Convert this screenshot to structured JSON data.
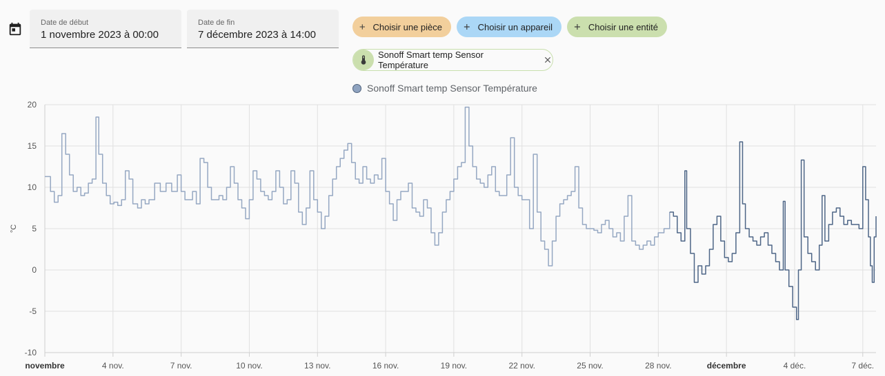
{
  "date_range": {
    "start": {
      "label": "Date de début",
      "value": "1 novembre 2023 à 00:00"
    },
    "end": {
      "label": "Date de fin",
      "value": "7 décembre 2023 à 14:00"
    }
  },
  "target_picker": {
    "area": {
      "label": "Choisir une pièce",
      "color": "#f2cf9c"
    },
    "device": {
      "label": "Choisir un appareil",
      "color": "#abd7f6"
    },
    "entity": {
      "label": "Choisir une entité",
      "color": "#cbdfae"
    }
  },
  "selected_entity": {
    "label": "Sonoff Smart temp Sensor Température",
    "icon": "thermometer-icon"
  },
  "chart_data": {
    "type": "line",
    "ylabel": "°C",
    "ylim": [
      -10,
      20
    ],
    "yticks": [
      "20",
      "15",
      "10",
      "5",
      "0",
      "-5",
      "-10"
    ],
    "grid": true,
    "legend": "top",
    "xlim": [
      "2023-11-01T00:00",
      "2023-12-07T14:00"
    ],
    "xticks": [
      {
        "label": "novembre",
        "date": "2023-11-01",
        "bold": true
      },
      {
        "label": "4 nov.",
        "date": "2023-11-04"
      },
      {
        "label": "7 nov.",
        "date": "2023-11-07"
      },
      {
        "label": "10 nov.",
        "date": "2023-11-10"
      },
      {
        "label": "13 nov.",
        "date": "2023-11-13"
      },
      {
        "label": "16 nov.",
        "date": "2023-11-16"
      },
      {
        "label": "19 nov.",
        "date": "2023-11-19"
      },
      {
        "label": "22 nov.",
        "date": "2023-11-22"
      },
      {
        "label": "25 nov.",
        "date": "2023-11-25"
      },
      {
        "label": "28 nov.",
        "date": "2023-11-28"
      },
      {
        "label": "décembre",
        "date": "2023-12-01",
        "bold": true
      },
      {
        "label": "4 déc.",
        "date": "2023-12-04"
      },
      {
        "label": "7 déc.",
        "date": "2023-12-07"
      }
    ],
    "series": [
      {
        "name": "Sonoff Smart temp Sensor Température",
        "color_history": "#95a7c2",
        "color_recent": "#4d6586",
        "recent_from": "2023-11-28T12:00",
        "points": [
          [
            "2023-11-01T00:00",
            11.3
          ],
          [
            "2023-11-01T06:00",
            9.5
          ],
          [
            "2023-11-01T10:00",
            8.2
          ],
          [
            "2023-11-01T14:00",
            9.0
          ],
          [
            "2023-11-01T18:00",
            16.5
          ],
          [
            "2023-11-01T22:00",
            14.0
          ],
          [
            "2023-11-02T02:00",
            11.5
          ],
          [
            "2023-11-02T06:00",
            9.5
          ],
          [
            "2023-11-02T10:00",
            10.0
          ],
          [
            "2023-11-02T14:00",
            9.0
          ],
          [
            "2023-11-02T18:00",
            9.3
          ],
          [
            "2023-11-02T22:00",
            10.5
          ],
          [
            "2023-11-03T02:00",
            11.0
          ],
          [
            "2023-11-03T06:00",
            18.5
          ],
          [
            "2023-11-03T09:00",
            14.0
          ],
          [
            "2023-11-03T13:00",
            10.5
          ],
          [
            "2023-11-03T17:00",
            9.0
          ],
          [
            "2023-11-03T21:00",
            8.0
          ],
          [
            "2023-11-04T01:00",
            8.2
          ],
          [
            "2023-11-04T05:00",
            7.8
          ],
          [
            "2023-11-04T09:00",
            8.5
          ],
          [
            "2023-11-04T13:00",
            12.0
          ],
          [
            "2023-11-04T17:00",
            11.0
          ],
          [
            "2023-11-04T21:00",
            8.0
          ],
          [
            "2023-11-05T02:00",
            7.5
          ],
          [
            "2023-11-05T06:00",
            8.5
          ],
          [
            "2023-11-05T10:00",
            8.0
          ],
          [
            "2023-11-05T14:00",
            8.5
          ],
          [
            "2023-11-05T20:00",
            10.5
          ],
          [
            "2023-11-06T02:00",
            9.5
          ],
          [
            "2023-11-06T08:00",
            10.5
          ],
          [
            "2023-11-06T14:00",
            9.5
          ],
          [
            "2023-11-06T20:00",
            11.5
          ],
          [
            "2023-11-07T00:00",
            9.5
          ],
          [
            "2023-11-07T04:00",
            8.5
          ],
          [
            "2023-11-07T08:00",
            8.5
          ],
          [
            "2023-11-07T12:00",
            9.5
          ],
          [
            "2023-11-07T16:00",
            8.0
          ],
          [
            "2023-11-07T20:00",
            13.5
          ],
          [
            "2023-11-08T00:00",
            13.0
          ],
          [
            "2023-11-08T04:00",
            10.0
          ],
          [
            "2023-11-08T08:00",
            8.5
          ],
          [
            "2023-11-08T12:00",
            8.5
          ],
          [
            "2023-11-08T16:00",
            9.0
          ],
          [
            "2023-11-08T20:00",
            8.5
          ],
          [
            "2023-11-09T00:00",
            10.0
          ],
          [
            "2023-11-09T04:00",
            12.5
          ],
          [
            "2023-11-09T08:00",
            10.5
          ],
          [
            "2023-11-09T12:00",
            8.5
          ],
          [
            "2023-11-09T16:00",
            7.5
          ],
          [
            "2023-11-09T20:00",
            6.2
          ],
          [
            "2023-11-10T00:00",
            8.5
          ],
          [
            "2023-11-10T04:00",
            12.0
          ],
          [
            "2023-11-10T08:00",
            11.0
          ],
          [
            "2023-11-10T12:00",
            9.5
          ],
          [
            "2023-11-10T16:00",
            9.0
          ],
          [
            "2023-11-10T20:00",
            8.5
          ],
          [
            "2023-11-11T00:00",
            9.5
          ],
          [
            "2023-11-11T04:00",
            12.0
          ],
          [
            "2023-11-11T08:00",
            10.0
          ],
          [
            "2023-11-11T12:00",
            8.0
          ],
          [
            "2023-11-11T16:00",
            8.5
          ],
          [
            "2023-11-11T20:00",
            12.0
          ],
          [
            "2023-11-12T00:00",
            10.5
          ],
          [
            "2023-11-12T04:00",
            7.0
          ],
          [
            "2023-11-12T08:00",
            5.5
          ],
          [
            "2023-11-12T12:00",
            7.5
          ],
          [
            "2023-11-12T16:00",
            12.0
          ],
          [
            "2023-11-12T20:00",
            8.5
          ],
          [
            "2023-11-13T00:00",
            7.0
          ],
          [
            "2023-11-13T04:00",
            5.0
          ],
          [
            "2023-11-13T08:00",
            6.5
          ],
          [
            "2023-11-13T12:00",
            9.0
          ],
          [
            "2023-11-13T16:00",
            11.0
          ],
          [
            "2023-11-13T20:00",
            12.5
          ],
          [
            "2023-11-14T00:00",
            13.5
          ],
          [
            "2023-11-14T04:00",
            14.5
          ],
          [
            "2023-11-14T08:00",
            15.3
          ],
          [
            "2023-11-14T12:00",
            13.0
          ],
          [
            "2023-11-14T16:00",
            11.0
          ],
          [
            "2023-11-14T20:00",
            10.5
          ],
          [
            "2023-11-15T00:00",
            12.5
          ],
          [
            "2023-11-15T04:00",
            11.0
          ],
          [
            "2023-11-15T08:00",
            10.5
          ],
          [
            "2023-11-15T12:00",
            11.5
          ],
          [
            "2023-11-15T16:00",
            11.0
          ],
          [
            "2023-11-15T20:00",
            13.5
          ],
          [
            "2023-11-16T00:00",
            9.5
          ],
          [
            "2023-11-16T04:00",
            8.0
          ],
          [
            "2023-11-16T08:00",
            6.0
          ],
          [
            "2023-11-16T12:00",
            8.5
          ],
          [
            "2023-11-16T16:00",
            9.5
          ],
          [
            "2023-11-16T20:00",
            9.5
          ],
          [
            "2023-11-17T00:00",
            10.5
          ],
          [
            "2023-11-17T04:00",
            7.5
          ],
          [
            "2023-11-17T08:00",
            7.0
          ],
          [
            "2023-11-17T12:00",
            6.5
          ],
          [
            "2023-11-17T16:00",
            8.5
          ],
          [
            "2023-11-17T20:00",
            7.5
          ],
          [
            "2023-11-18T00:00",
            4.5
          ],
          [
            "2023-11-18T04:00",
            3.0
          ],
          [
            "2023-11-18T08:00",
            4.5
          ],
          [
            "2023-11-18T12:00",
            7.0
          ],
          [
            "2023-11-18T16:00",
            8.5
          ],
          [
            "2023-11-18T20:00",
            9.5
          ],
          [
            "2023-11-19T00:00",
            11.0
          ],
          [
            "2023-11-19T04:00",
            12.5
          ],
          [
            "2023-11-19T08:00",
            13.0
          ],
          [
            "2023-11-19T12:00",
            19.7
          ],
          [
            "2023-11-19T16:00",
            15.0
          ],
          [
            "2023-11-19T20:00",
            12.5
          ],
          [
            "2023-11-20T00:00",
            11.0
          ],
          [
            "2023-11-20T04:00",
            10.5
          ],
          [
            "2023-11-20T08:00",
            10.0
          ],
          [
            "2023-11-20T12:00",
            11.5
          ],
          [
            "2023-11-20T16:00",
            12.5
          ],
          [
            "2023-11-20T20:00",
            9.5
          ],
          [
            "2023-11-21T00:00",
            9.0
          ],
          [
            "2023-11-21T04:00",
            9.0
          ],
          [
            "2023-11-21T08:00",
            11.5
          ],
          [
            "2023-11-21T12:00",
            16.0
          ],
          [
            "2023-11-21T16:00",
            10.0
          ],
          [
            "2023-11-21T20:00",
            9.0
          ],
          [
            "2023-11-22T00:00",
            8.5
          ],
          [
            "2023-11-22T04:00",
            8.5
          ],
          [
            "2023-11-22T08:00",
            5.0
          ],
          [
            "2023-11-22T12:00",
            14.0
          ],
          [
            "2023-11-22T16:00",
            7.0
          ],
          [
            "2023-11-22T20:00",
            3.5
          ],
          [
            "2023-11-23T00:00",
            2.5
          ],
          [
            "2023-11-23T04:00",
            0.5
          ],
          [
            "2023-11-23T08:00",
            3.5
          ],
          [
            "2023-11-23T12:00",
            6.5
          ],
          [
            "2023-11-23T16:00",
            8.0
          ],
          [
            "2023-11-23T20:00",
            8.5
          ],
          [
            "2023-11-24T00:00",
            9.0
          ],
          [
            "2023-11-24T04:00",
            9.5
          ],
          [
            "2023-11-24T08:00",
            12.5
          ],
          [
            "2023-11-24T12:00",
            7.5
          ],
          [
            "2023-11-24T16:00",
            5.5
          ],
          [
            "2023-11-24T20:00",
            5.0
          ],
          [
            "2023-11-25T00:00",
            5.0
          ],
          [
            "2023-11-25T04:00",
            4.8
          ],
          [
            "2023-11-25T08:00",
            4.5
          ],
          [
            "2023-11-25T12:00",
            5.5
          ],
          [
            "2023-11-25T16:00",
            6.0
          ],
          [
            "2023-11-25T20:00",
            5.0
          ],
          [
            "2023-11-26T00:00",
            4.0
          ],
          [
            "2023-11-26T04:00",
            4.5
          ],
          [
            "2023-11-26T08:00",
            3.5
          ],
          [
            "2023-11-26T12:00",
            6.5
          ],
          [
            "2023-11-26T16:00",
            9.0
          ],
          [
            "2023-11-26T20:00",
            3.5
          ],
          [
            "2023-11-27T00:00",
            3.0
          ],
          [
            "2023-11-27T04:00",
            2.5
          ],
          [
            "2023-11-27T08:00",
            3.0
          ],
          [
            "2023-11-27T12:00",
            3.5
          ],
          [
            "2023-11-27T16:00",
            3.0
          ],
          [
            "2023-11-27T20:00",
            4.0
          ],
          [
            "2023-11-28T00:00",
            4.5
          ],
          [
            "2023-11-28T06:00",
            5.0
          ],
          [
            "2023-11-28T12:00",
            7.0
          ],
          [
            "2023-11-28T16:00",
            6.5
          ],
          [
            "2023-11-28T20:00",
            4.5
          ],
          [
            "2023-11-29T00:00",
            3.5
          ],
          [
            "2023-11-29T04:00",
            12.0
          ],
          [
            "2023-11-29T06:00",
            5.0
          ],
          [
            "2023-11-29T10:00",
            2.0
          ],
          [
            "2023-11-29T14:00",
            -1.5
          ],
          [
            "2023-11-29T18:00",
            0.5
          ],
          [
            "2023-11-29T22:00",
            -0.5
          ],
          [
            "2023-11-30T02:00",
            0.5
          ],
          [
            "2023-11-30T06:00",
            2.5
          ],
          [
            "2023-11-30T10:00",
            5.5
          ],
          [
            "2023-11-30T14:00",
            6.5
          ],
          [
            "2023-11-30T18:00",
            3.5
          ],
          [
            "2023-11-30T22:00",
            1.5
          ],
          [
            "2023-12-01T02:00",
            1.0
          ],
          [
            "2023-12-01T06:00",
            2.0
          ],
          [
            "2023-12-01T10:00",
            4.5
          ],
          [
            "2023-12-01T14:00",
            15.5
          ],
          [
            "2023-12-01T17:00",
            8.0
          ],
          [
            "2023-12-01T20:00",
            5.0
          ],
          [
            "2023-12-02T00:00",
            4.0
          ],
          [
            "2023-12-02T04:00",
            3.5
          ],
          [
            "2023-12-02T08:00",
            3.0
          ],
          [
            "2023-12-02T12:00",
            4.0
          ],
          [
            "2023-12-02T16:00",
            4.5
          ],
          [
            "2023-12-02T20:00",
            3.0
          ],
          [
            "2023-12-03T00:00",
            2.0
          ],
          [
            "2023-12-03T04:00",
            1.0
          ],
          [
            "2023-12-03T08:00",
            0.0
          ],
          [
            "2023-12-03T12:00",
            8.3
          ],
          [
            "2023-12-03T14:00",
            0.0
          ],
          [
            "2023-12-03T18:00",
            -2.0
          ],
          [
            "2023-12-03T22:00",
            -4.5
          ],
          [
            "2023-12-04T02:00",
            -6.0
          ],
          [
            "2023-12-04T04:00",
            0.0
          ],
          [
            "2023-12-04T07:00",
            13.3
          ],
          [
            "2023-12-04T10:00",
            4.0
          ],
          [
            "2023-12-04T14:00",
            2.0
          ],
          [
            "2023-12-04T18:00",
            1.0
          ],
          [
            "2023-12-04T22:00",
            0.0
          ],
          [
            "2023-12-05T02:00",
            3.0
          ],
          [
            "2023-12-05T05:00",
            9.0
          ],
          [
            "2023-12-05T08:00",
            3.5
          ],
          [
            "2023-12-05T12:00",
            5.5
          ],
          [
            "2023-12-05T16:00",
            7.0
          ],
          [
            "2023-12-05T20:00",
            7.5
          ],
          [
            "2023-12-06T00:00",
            6.5
          ],
          [
            "2023-12-06T04:00",
            5.5
          ],
          [
            "2023-12-06T08:00",
            6.0
          ],
          [
            "2023-12-06T12:00",
            5.5
          ],
          [
            "2023-12-06T16:00",
            5.5
          ],
          [
            "2023-12-06T20:00",
            5.0
          ],
          [
            "2023-12-07T00:00",
            12.5
          ],
          [
            "2023-12-07T03:00",
            8.5
          ],
          [
            "2023-12-07T06:00",
            4.0
          ],
          [
            "2023-12-07T08:00",
            0.5
          ],
          [
            "2023-12-07T10:00",
            -1.5
          ],
          [
            "2023-12-07T12:00",
            4.0
          ],
          [
            "2023-12-07T14:00",
            6.5
          ]
        ]
      }
    ]
  }
}
